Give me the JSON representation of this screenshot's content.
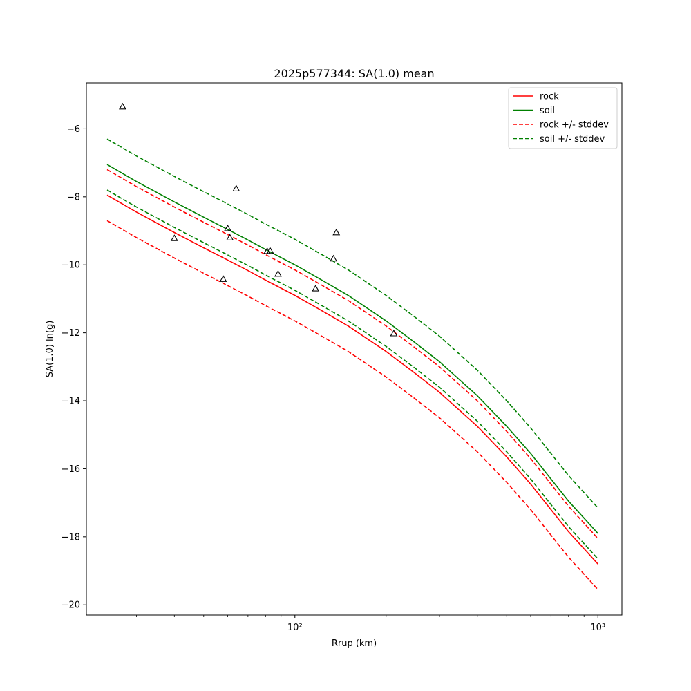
{
  "chart_data": {
    "type": "line",
    "title": "2025p577344: SA(1.0) mean",
    "xlabel": "Rrup (km)",
    "ylabel": "SA(1.0) ln(g)",
    "xscale": "log",
    "xlim": [
      20.5,
      1200
    ],
    "ylim": [
      -20.3,
      -4.65
    ],
    "grid": false,
    "legend_position": "top-right",
    "x_major_ticks": [
      100,
      1000
    ],
    "x_major_tick_labels": [
      "10²",
      "10³"
    ],
    "y_ticks": [
      -20,
      -18,
      -16,
      -14,
      -12,
      -10,
      -8,
      -6
    ],
    "y_tick_labels": [
      "−20",
      "−18",
      "−16",
      "−14",
      "−12",
      "−10",
      "−8",
      "−6"
    ],
    "x": [
      24,
      30,
      40,
      50,
      60,
      70,
      80,
      100,
      120,
      150,
      200,
      250,
      300,
      400,
      500,
      600,
      700,
      800,
      900,
      1000
    ],
    "series": [
      {
        "name": "rock",
        "style": "solid",
        "color": "#ff0000",
        "values": [
          -7.95,
          -8.45,
          -9.05,
          -9.5,
          -9.86,
          -10.17,
          -10.45,
          -10.9,
          -11.3,
          -11.8,
          -12.55,
          -13.2,
          -13.75,
          -14.75,
          -15.65,
          -16.45,
          -17.2,
          -17.85,
          -18.35,
          -18.8
        ]
      },
      {
        "name": "soil",
        "style": "solid",
        "color": "#008000",
        "values": [
          -7.05,
          -7.55,
          -8.15,
          -8.6,
          -8.96,
          -9.27,
          -9.55,
          -10.0,
          -10.4,
          -10.9,
          -11.65,
          -12.3,
          -12.85,
          -13.85,
          -14.75,
          -15.55,
          -16.3,
          -16.95,
          -17.45,
          -17.9
        ]
      },
      {
        "name": "rock +/- stddev",
        "style": "dashed",
        "color": "#ff0000",
        "values_upper": [
          -7.2,
          -7.7,
          -8.3,
          -8.75,
          -9.11,
          -9.42,
          -9.7,
          -10.15,
          -10.55,
          -11.05,
          -11.8,
          -12.45,
          -13.0,
          -14.0,
          -14.9,
          -15.7,
          -16.45,
          -17.1,
          -17.6,
          -18.05
        ],
        "values_lower": [
          -8.7,
          -9.2,
          -9.8,
          -10.25,
          -10.61,
          -10.92,
          -11.2,
          -11.65,
          -12.05,
          -12.55,
          -13.3,
          -13.95,
          -14.5,
          -15.5,
          -16.4,
          -17.2,
          -17.95,
          -18.6,
          -19.1,
          -19.55
        ]
      },
      {
        "name": "soil +/- stddev",
        "style": "dashed",
        "color": "#008000",
        "values_upper": [
          -6.3,
          -6.8,
          -7.4,
          -7.85,
          -8.21,
          -8.52,
          -8.8,
          -9.25,
          -9.65,
          -10.15,
          -10.9,
          -11.55,
          -12.1,
          -13.1,
          -14.0,
          -14.8,
          -15.55,
          -16.2,
          -16.7,
          -17.15
        ],
        "values_lower": [
          -7.8,
          -8.3,
          -8.9,
          -9.35,
          -9.71,
          -10.02,
          -10.3,
          -10.75,
          -11.15,
          -11.65,
          -12.4,
          -13.05,
          -13.6,
          -14.6,
          -15.5,
          -16.3,
          -17.05,
          -17.7,
          -18.2,
          -18.65
        ]
      }
    ],
    "observations": {
      "marker": "open-triangle",
      "color": "#000000",
      "points": [
        {
          "x": 27,
          "y": -5.35
        },
        {
          "x": 40,
          "y": -9.22
        },
        {
          "x": 58,
          "y": -10.42
        },
        {
          "x": 60,
          "y": -8.93
        },
        {
          "x": 61,
          "y": -9.2
        },
        {
          "x": 64,
          "y": -7.76
        },
        {
          "x": 81,
          "y": -9.6
        },
        {
          "x": 83,
          "y": -9.6
        },
        {
          "x": 88,
          "y": -10.27
        },
        {
          "x": 117,
          "y": -10.7
        },
        {
          "x": 134,
          "y": -9.82
        },
        {
          "x": 137,
          "y": -9.05
        },
        {
          "x": 212,
          "y": -12.02
        }
      ]
    }
  }
}
